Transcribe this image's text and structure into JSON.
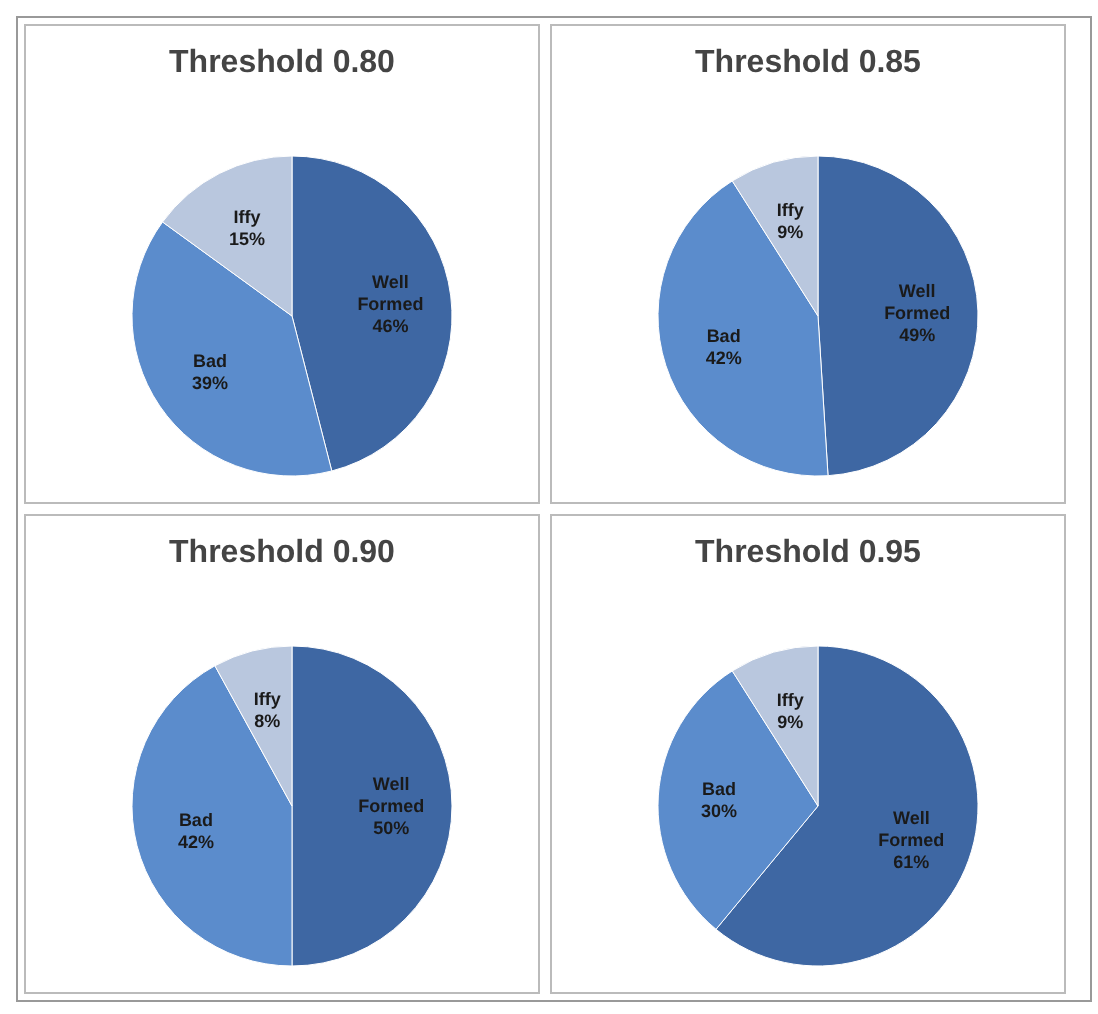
{
  "chart_data": [
    {
      "type": "pie",
      "title": "Threshold 0.80",
      "categories": [
        "Well Formed",
        "Bad",
        "Iffy"
      ],
      "values": [
        46,
        39,
        15
      ],
      "value_labels": [
        "46%",
        "39%",
        "15%"
      ],
      "colors": [
        "#3e67a3",
        "#5b8ccc",
        "#b9c7de"
      ]
    },
    {
      "type": "pie",
      "title": "Threshold 0.85",
      "categories": [
        "Well Formed",
        "Bad",
        "Iffy"
      ],
      "values": [
        49,
        42,
        9
      ],
      "value_labels": [
        "49%",
        "42%",
        "9%"
      ],
      "colors": [
        "#3e67a3",
        "#5b8ccc",
        "#b9c7de"
      ]
    },
    {
      "type": "pie",
      "title": "Threshold 0.90",
      "categories": [
        "Well Formed",
        "Bad",
        "Iffy"
      ],
      "values": [
        50,
        42,
        8
      ],
      "value_labels": [
        "50%",
        "42%",
        "8%"
      ],
      "colors": [
        "#3e67a3",
        "#5b8ccc",
        "#b9c7de"
      ]
    },
    {
      "type": "pie",
      "title": "Threshold 0.95",
      "categories": [
        "Well Formed",
        "Bad",
        "Iffy"
      ],
      "values": [
        61,
        30,
        9
      ],
      "value_labels": [
        "61%",
        "30%",
        "9%"
      ],
      "colors": [
        "#3e67a3",
        "#5b8ccc",
        "#b9c7de"
      ]
    }
  ]
}
